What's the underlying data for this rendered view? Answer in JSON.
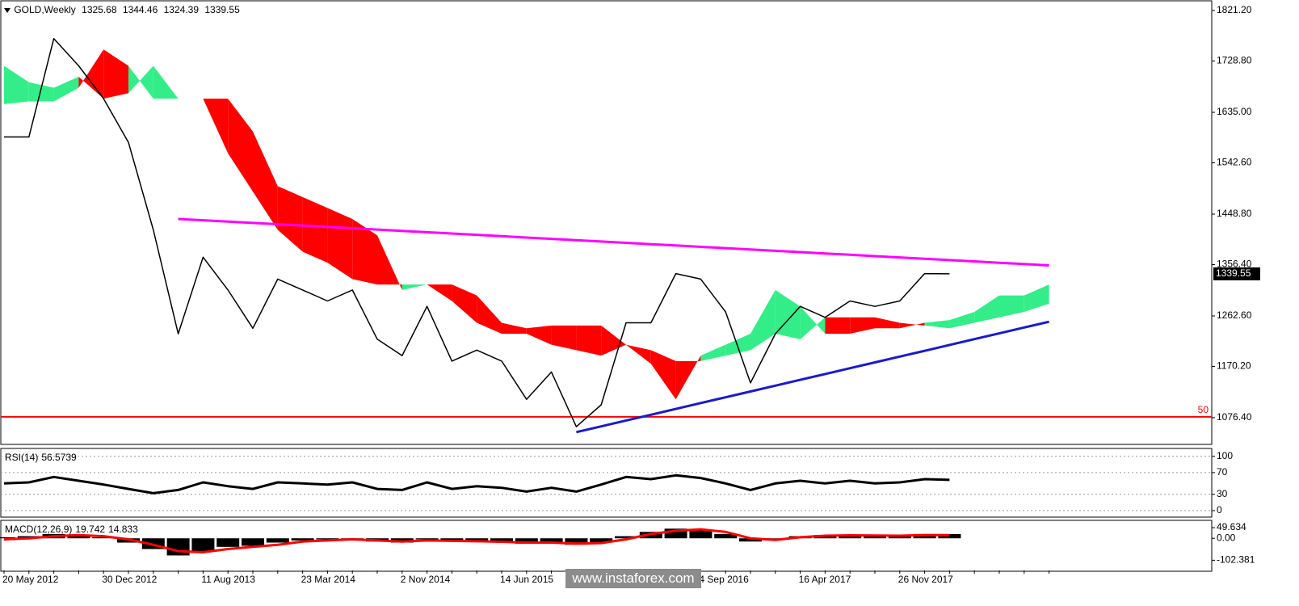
{
  "chart_data": [
    {
      "type": "line",
      "title": "GOLD,Weekly",
      "ohlc": [
        1325.68,
        1344.46,
        1324.39,
        1339.55
      ],
      "categories": [
        "20 May 2012",
        null,
        null,
        null,
        "30 Dec 2012",
        null,
        null,
        null,
        "11 Aug 2013",
        null,
        null,
        null,
        "23 Mar 2014",
        null,
        null,
        null,
        "2 Nov 2014",
        null,
        null,
        null,
        "14 Jun 2015",
        null,
        null,
        null,
        null,
        null,
        null,
        null,
        "4 Sep 2016",
        null,
        null,
        null,
        "16 Apr 2017",
        null,
        null,
        null,
        "26 Nov 2017",
        null,
        null,
        null,
        null,
        null,
        null
      ],
      "series": [
        {
          "color": "#000000",
          "values": [
            1590,
            1590,
            1770,
            1720,
            1660,
            1580,
            1420,
            1230,
            1370,
            1310,
            1240,
            1330,
            1310,
            1290,
            1310,
            1220,
            1190,
            1280,
            1180,
            1200,
            1180,
            1110,
            1160,
            1060,
            1100,
            1250,
            1250,
            1340,
            1330,
            1270,
            1140,
            1230,
            1280,
            1260,
            1290,
            1280,
            1290,
            1340,
            1339.55,
            null,
            null,
            null,
            null
          ]
        }
      ],
      "cloud": {
        "colors": [
          "#33ee88",
          "#ff0000"
        ],
        "span_a": [
          1720,
          1690,
          1680,
          1700,
          1660,
          1670,
          1720,
          1660,
          1660,
          1560,
          1490,
          1420,
          1380,
          1360,
          1330,
          1320,
          1320,
          1320,
          1290,
          1250,
          1230,
          1230,
          1210,
          1200,
          1190,
          1210,
          1175,
          1110,
          1190,
          1210,
          1230,
          1310,
          1280,
          1230,
          1230,
          1240,
          1240,
          1250,
          1255,
          1270,
          1300,
          1300,
          1320
        ],
        "span_b": [
          1650,
          1655,
          1655,
          1680,
          1750,
          1720,
          1660,
          1660,
          1660,
          1660,
          1600,
          1500,
          1480,
          1460,
          1440,
          1410,
          1310,
          1320,
          1320,
          1300,
          1250,
          1240,
          1245,
          1245,
          1245,
          1210,
          1200,
          1180,
          1180,
          1190,
          1200,
          1230,
          1220,
          1260,
          1260,
          1260,
          1250,
          1245,
          1240,
          1250,
          1260,
          1270,
          1285
        ]
      },
      "trend_lines": [
        {
          "color": "#ff00ff",
          "values": [
            null,
            null,
            null,
            null,
            null,
            null,
            null,
            1440,
            1437.6,
            1435.1,
            1432.7,
            1430.3,
            1427.9,
            1425.4,
            1423,
            1420.6,
            1418.1,
            1415.7,
            1413.3,
            1410.9,
            1408.4,
            1406,
            1403.6,
            1401.1,
            1398.7,
            1396.3,
            1393.9,
            1391.4,
            1389,
            1386.6,
            1384.1,
            1381.7,
            1379.3,
            1376.9,
            1374.4,
            1372,
            1369.6,
            1367.1,
            1364.7,
            1362.3,
            1359.9,
            1357.4,
            1355
          ]
        },
        {
          "color": "#1a1acc",
          "values": [
            null,
            null,
            null,
            null,
            null,
            null,
            null,
            null,
            null,
            null,
            null,
            null,
            null,
            null,
            null,
            null,
            null,
            null,
            null,
            null,
            null,
            null,
            null,
            1050,
            1060.6,
            1071.3,
            1081.9,
            1092.5,
            1103.2,
            1113.8,
            1124.4,
            1135,
            1145.7,
            1156.3,
            1166.9,
            1177.6,
            1188.2,
            1198.8,
            1209.5,
            1220.1,
            1230.7,
            1241.4,
            1252
          ]
        }
      ],
      "hline": {
        "value": 1078,
        "label": "50",
        "color": "#ff0000"
      },
      "ylim": [
        1027.6,
        1837.5
      ],
      "yticks": [
        {
          "value": 1821.2,
          "label": "1821.20"
        },
        {
          "value": 1728.8,
          "label": "1728.80"
        },
        {
          "value": 1635,
          "label": "1635.00"
        },
        {
          "value": 1542.6,
          "label": "1542.60"
        },
        {
          "value": 1448.8,
          "label": "1448.80"
        },
        {
          "value": 1356.4,
          "label": "1356.40"
        },
        {
          "value": 1262.6,
          "label": "1262.60"
        },
        {
          "value": 1170.2,
          "label": "1170.20"
        },
        {
          "value": 1076.4,
          "label": "1076.40"
        }
      ],
      "grid": false
    },
    {
      "type": "line",
      "title": "RSI(14)",
      "series": [
        {
          "color": "#000000",
          "values": [
            50,
            52,
            62,
            55,
            48,
            40,
            32,
            38,
            52,
            45,
            40,
            52,
            50,
            48,
            52,
            40,
            38,
            52,
            40,
            45,
            42,
            35,
            42,
            35,
            48,
            62,
            58,
            65,
            60,
            50,
            38,
            50,
            55,
            50,
            55,
            50,
            52,
            58,
            56.5739
          ]
        }
      ],
      "ylim": [
        -12,
        113
      ],
      "yticks": [
        100,
        70,
        30,
        0
      ],
      "grid": true
    },
    {
      "type": "macd",
      "title": "MACD(12,26,9)",
      "series": [
        {
          "color": "#000000",
          "values": [
            5,
            10,
            20,
            15,
            5,
            -20,
            -50,
            -80,
            -60,
            -40,
            -35,
            -20,
            -10,
            -5,
            -5,
            -15,
            -20,
            -5,
            -15,
            -15,
            -20,
            -25,
            -20,
            -30,
            -20,
            10,
            30,
            45,
            40,
            20,
            -15,
            -5,
            10,
            15,
            15,
            12,
            15,
            20,
            19.742
          ]
        },
        {
          "color": "#ff0000",
          "values": [
            -5,
            0,
            10,
            15,
            10,
            -5,
            -30,
            -60,
            -65,
            -50,
            -40,
            -30,
            -15,
            -10,
            -5,
            -10,
            -15,
            -10,
            -12,
            -14,
            -16,
            -20,
            -20,
            -25,
            -22,
            -5,
            20,
            35,
            42,
            30,
            0,
            -8,
            5,
            12,
            14,
            13,
            12,
            15,
            14.833
          ]
        }
      ],
      "ylim": [
        -150,
        80
      ],
      "yticks": [
        49.634,
        {
          "value": 0,
          "label": "0.00"
        },
        -102.381
      ],
      "grid": false
    }
  ],
  "watermark": "www.instaforex.com"
}
